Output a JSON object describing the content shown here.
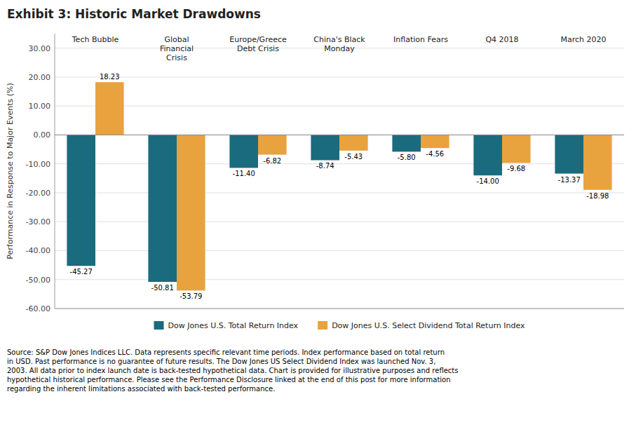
{
  "chart_data": {
    "type": "bar",
    "title": "Exhibit 3: Historic Market Drawdowns",
    "ylabel": "Performance in Response to Major Events (%)",
    "categories": [
      "Tech Bubble",
      "Global\nFinancial\nCrisis",
      "Europe/Greece\nDebt Crisis",
      "China's Black\nMonday",
      "Inflation Fears",
      "Q4 2018",
      "March 2020"
    ],
    "series": [
      {
        "name": "Dow Jones U.S. Total Return Index",
        "color": "#1a6b7d",
        "values": [
          -45.27,
          -50.81,
          -11.4,
          -8.74,
          -5.8,
          -14.0,
          -13.37
        ],
        "value_labels": [
          "-45.27",
          "-50.81",
          "-11.40",
          "-8.74",
          "-5.80",
          "-14.00",
          "-13.37"
        ]
      },
      {
        "name": "Dow Jones U.S. Select Dividend Total Return Index",
        "color": "#e8a23e",
        "values": [
          18.23,
          -53.79,
          -6.82,
          -5.43,
          -4.56,
          -9.68,
          -18.98
        ],
        "value_labels": [
          "18.23",
          "-53.79",
          "-6.82",
          "-5.43",
          "-4.56",
          "-9.68",
          "-18.98"
        ]
      }
    ],
    "ylim": [
      -60,
      35
    ],
    "yticks": [
      {
        "value": -60,
        "label": "-60.00"
      },
      {
        "value": -50,
        "label": "-50.00"
      },
      {
        "value": -40,
        "label": "-40.00"
      },
      {
        "value": -30,
        "label": "-30.00"
      },
      {
        "value": -20,
        "label": "-20.00"
      },
      {
        "value": -10,
        "label": "-10.00"
      },
      {
        "value": 0,
        "label": "0.00"
      },
      {
        "value": 10,
        "label": "10.00"
      },
      {
        "value": 20,
        "label": "20.00"
      },
      {
        "value": 30,
        "label": "30.00"
      }
    ],
    "grid": true,
    "legend": "bottom",
    "data_labels": true,
    "annotations": [
      "Source: S&P Dow Jones Indices LLC. Data represents specific relevant time periods. Index performance based on total return\nin USD. Past performance is no guarantee of future results. The Dow Jones US Select Dividend Index was launched Nov. 3,\n2003. All data prior to index launch date is back-tested hypothetical data. Chart is provided for illustrative purposes and reflects\nhypothetical historical performance. Please see the Performance Disclosure linked at the end of this post for more information\nregarding the inherent limitations associated with back-tested performance."
    ]
  }
}
